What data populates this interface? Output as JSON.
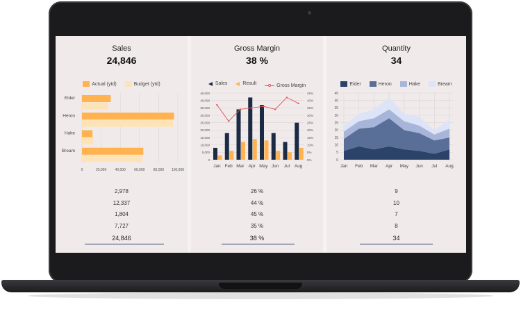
{
  "sales": {
    "title": "Sales",
    "value": "24,846",
    "legend": {
      "actual": "Actual (ytd)",
      "budget": "Budget (ytd)"
    },
    "colors": {
      "actual": "#ffb24e",
      "budget": "#fde3b8"
    },
    "rows": [
      "2,978",
      "12,337",
      "1,804",
      "7,727"
    ],
    "total": "24,846"
  },
  "margin": {
    "title": "Gross Margin",
    "value": "38 %",
    "legend": {
      "sales": "Sales",
      "result": "Result",
      "gross_margin": "Gross Margin"
    },
    "colors": {
      "sales": "#1b2b45",
      "result": "#ffb24e",
      "gross_margin": "#e15759"
    },
    "rows": [
      "26 %",
      "44 %",
      "45 %",
      "35 %"
    ],
    "total": "38 %"
  },
  "quantity": {
    "title": "Quantity",
    "value": "34",
    "legend": [
      "Eider",
      "Heron",
      "Hake",
      "Bream"
    ],
    "colors": [
      "#2c4369",
      "#5a6f98",
      "#a6b5d9",
      "#dde4f8"
    ],
    "rows": [
      "9",
      "10",
      "7",
      "8"
    ],
    "total": "34"
  },
  "chart_data": [
    {
      "type": "bar",
      "orientation": "horizontal",
      "categories": [
        "Eider",
        "Heron",
        "Hake",
        "Bream"
      ],
      "series": [
        {
          "name": "Actual (ytd)",
          "values": [
            30000,
            96000,
            11000,
            64000
          ]
        },
        {
          "name": "Budget (ytd)",
          "values": [
            27000,
            95000,
            12000,
            63000
          ]
        }
      ],
      "xlim": [
        0,
        100000
      ],
      "xticks": [
        "0",
        "20,000",
        "40,000",
        "60,000",
        "80,000",
        "100,000"
      ],
      "grid": true
    },
    {
      "type": "bar",
      "categories": [
        "Jan",
        "Feb",
        "Mar",
        "Apr",
        "May",
        "Jun",
        "Jul",
        "Aug"
      ],
      "series": [
        {
          "name": "Sales",
          "values": [
            8000,
            18000,
            34000,
            42000,
            37000,
            18000,
            12000,
            25000
          ]
        },
        {
          "name": "Result",
          "values": [
            3000,
            6000,
            12000,
            14000,
            13000,
            6000,
            5000,
            8000
          ]
        },
        {
          "name": "Gross Margin",
          "type": "line",
          "axis": "right",
          "values": [
            37,
            26,
            34,
            35,
            36,
            34,
            42,
            38
          ]
        }
      ],
      "ylim": [
        0,
        45000
      ],
      "y2lim": [
        0,
        45
      ],
      "yticks": [
        "0",
        "5,000",
        "10,000",
        "15,000",
        "20,000",
        "25,000",
        "30,000",
        "35,000",
        "40,000",
        "45,000"
      ],
      "y2ticks": [
        "0%",
        "5%",
        "10%",
        "15%",
        "20%",
        "25%",
        "30%",
        "35%",
        "40%",
        "45%"
      ],
      "grid": true
    },
    {
      "type": "area",
      "stacked": true,
      "categories": [
        "Jan",
        "Feb",
        "Mar",
        "Apr",
        "May",
        "Jun",
        "Jul",
        "Aug"
      ],
      "series": [
        {
          "name": "Eider",
          "values": [
            6,
            9,
            7,
            9,
            7,
            6,
            4,
            7
          ]
        },
        {
          "name": "Heron",
          "values": [
            8,
            12,
            15,
            19,
            13,
            12,
            9,
            8
          ]
        },
        {
          "name": "Hake",
          "values": [
            5,
            5,
            6,
            6,
            6,
            5,
            4,
            6
          ]
        },
        {
          "name": "Bream",
          "values": [
            4,
            5,
            6,
            8,
            5,
            6,
            3,
            6
          ]
        }
      ],
      "ylim": [
        0,
        45
      ],
      "yticks": [
        "0",
        "5",
        "10",
        "15",
        "20",
        "25",
        "30",
        "35",
        "40",
        "45"
      ],
      "grid": true
    }
  ]
}
